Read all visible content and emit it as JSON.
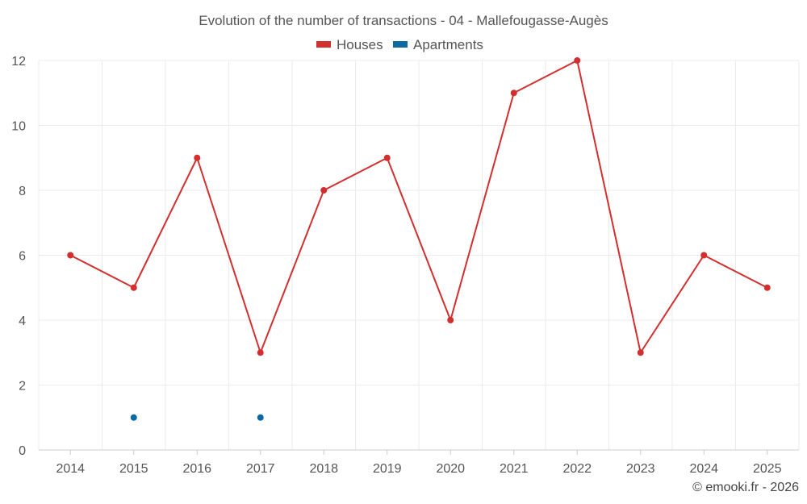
{
  "chart_data": {
    "type": "line",
    "title": "Evolution of the number of transactions - 04 - Mallefougasse-Augès",
    "xlabel": "",
    "ylabel": "",
    "categories": [
      "2014",
      "2015",
      "2016",
      "2017",
      "2018",
      "2019",
      "2020",
      "2021",
      "2022",
      "2023",
      "2024",
      "2025"
    ],
    "ylim": [
      0,
      12
    ],
    "yticks": [
      0,
      2,
      4,
      6,
      8,
      10,
      12
    ],
    "grid": true,
    "legend_position": "top-center",
    "series": [
      {
        "name": "Houses",
        "color": "#d32f2f",
        "values": [
          6,
          5,
          9,
          3,
          8,
          9,
          4,
          11,
          12,
          3,
          6,
          5
        ],
        "line": true
      },
      {
        "name": "Apartments",
        "color": "#0b6aa2",
        "values": [
          null,
          1,
          null,
          1,
          null,
          null,
          null,
          null,
          null,
          null,
          null,
          null
        ],
        "line": false
      }
    ]
  },
  "credit": "© emooki.fr - 2026"
}
